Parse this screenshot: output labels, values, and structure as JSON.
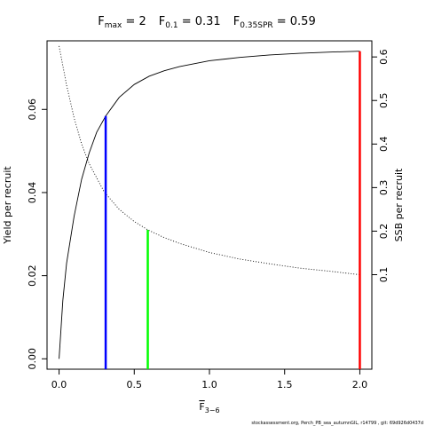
{
  "chart_data": {
    "type": "line",
    "title_parts": [
      {
        "main": "F",
        "sub": "max",
        "rest": " = 2"
      },
      {
        "main": "F",
        "sub": "0.1",
        "rest": " = 0.31"
      },
      {
        "main": "F",
        "sub": "0.35SPR",
        "rest": " = 0.59"
      }
    ],
    "xlabel": {
      "main": "F",
      "sub": "3−6"
    },
    "ylabel": "Yield per recruit",
    "y2label": "SSB per recruit",
    "xlim": [
      -0.08,
      2.08
    ],
    "ylim": [
      -0.0025,
      0.0765
    ],
    "y2lim": [
      -0.117,
      0.637
    ],
    "x_ticks": [
      0,
      0.5,
      1,
      1.5,
      2
    ],
    "x_tick_labels": [
      "0.0",
      "0.5",
      "1.0",
      "1.5",
      "2.0"
    ],
    "y_ticks": [
      0,
      0.02,
      0.04,
      0.06
    ],
    "y_tick_labels": [
      "0.00",
      "0.02",
      "0.04",
      "0.06"
    ],
    "y2_ticks": [
      0.1,
      0.2,
      0.3,
      0.4,
      0.5,
      0.6
    ],
    "y2_tick_labels": [
      "0.1",
      "0.2",
      "0.3",
      "0.4",
      "0.5",
      "0.6"
    ],
    "series": [
      {
        "name": "Yield per recruit",
        "axis": "left",
        "style": "solid",
        "x": [
          0,
          0.025,
          0.05,
          0.1,
          0.15,
          0.2,
          0.25,
          0.31,
          0.4,
          0.5,
          0.6,
          0.7,
          0.8,
          1.0,
          1.2,
          1.4,
          1.6,
          1.8,
          2.0
        ],
        "y": [
          0,
          0.014,
          0.023,
          0.0343,
          0.0432,
          0.0495,
          0.0545,
          0.0584,
          0.0629,
          0.066,
          0.068,
          0.0693,
          0.0703,
          0.0717,
          0.0725,
          0.0731,
          0.0735,
          0.0738,
          0.074
        ]
      },
      {
        "name": "SSB per recruit",
        "axis": "right",
        "style": "dotted",
        "x": [
          0,
          0.05,
          0.1,
          0.15,
          0.2,
          0.3,
          0.4,
          0.5,
          0.59,
          0.7,
          0.8,
          1.0,
          1.2,
          1.4,
          1.6,
          1.8,
          2.0
        ],
        "y": [
          0.625,
          0.535,
          0.46,
          0.4,
          0.355,
          0.29,
          0.25,
          0.222,
          0.203,
          0.185,
          0.172,
          0.151,
          0.136,
          0.125,
          0.115,
          0.108,
          0.1
        ]
      }
    ],
    "reference_lines": [
      {
        "name": "F0.1",
        "x": 0.31,
        "axis": "left",
        "top": 0.0584,
        "color": "#0000ff"
      },
      {
        "name": "F0.35SPR",
        "x": 0.59,
        "axis": "right",
        "top": 0.203,
        "color": "#00ff00"
      },
      {
        "name": "Fmax",
        "x": 2.0,
        "axis": "left",
        "top": 0.074,
        "color": "#ff0000"
      }
    ],
    "footer": "stockassessment.org, Perch_PB_sea_autumnGIL, r14799 , git: 69d926d0437d"
  }
}
